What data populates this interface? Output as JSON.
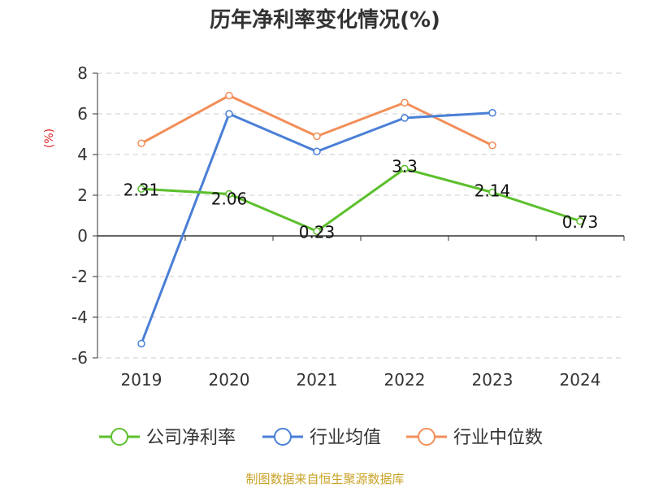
{
  "chart_data": {
    "type": "line",
    "title": "历年净利率变化情况(%)",
    "ylabel": "(%)",
    "xlabel": "",
    "categories": [
      "2019",
      "2020",
      "2021",
      "2022",
      "2023",
      "2024"
    ],
    "ylim": [
      -6,
      8
    ],
    "yticks": [
      8,
      6,
      4,
      2,
      0,
      -2,
      -4,
      -6
    ],
    "grid": true,
    "legend_position": "bottom",
    "series": [
      {
        "name": "公司净利率",
        "color": "#5cc02c",
        "values": [
          2.31,
          2.06,
          0.23,
          3.3,
          2.14,
          0.73
        ],
        "labels": [
          "2.31",
          "2.06",
          "0.23",
          "3.3",
          "2.14",
          "0.73"
        ]
      },
      {
        "name": "行业均值",
        "color": "#4a7fd6",
        "values": [
          -5.3,
          6.0,
          4.15,
          5.8,
          6.05,
          null
        ]
      },
      {
        "name": "行业中位数",
        "color": "#f28f5a",
        "values": [
          4.55,
          6.9,
          4.9,
          6.55,
          4.45,
          null
        ]
      }
    ]
  },
  "source": "制图数据来自恒生聚源数据库"
}
